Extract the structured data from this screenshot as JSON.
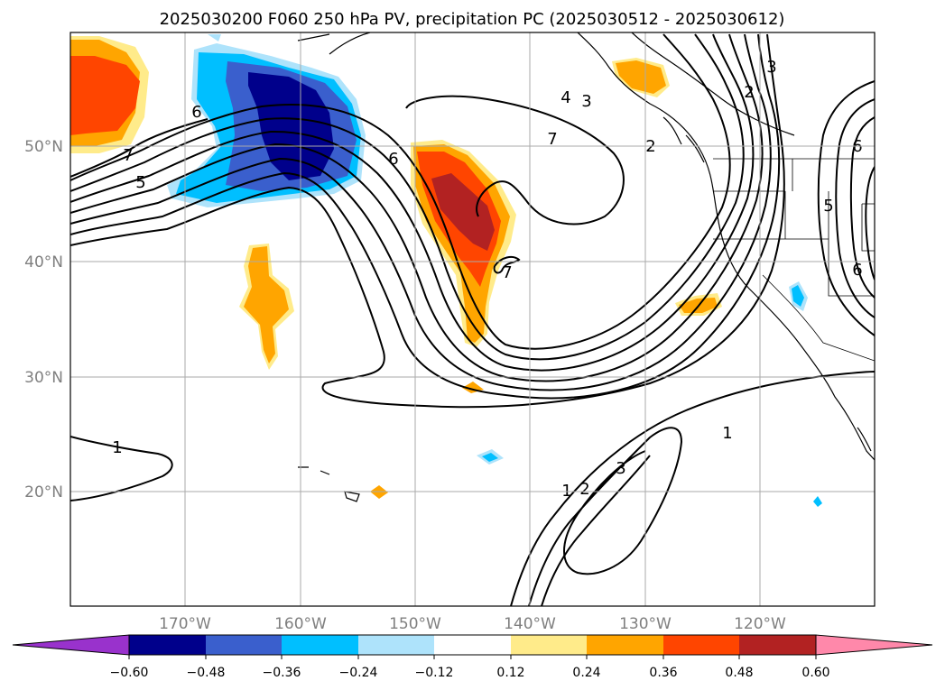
{
  "title": "2025030200 F060 250 hPa PV, precipitation PC (2025030512 - 2025030612)",
  "lat_labels": [
    "50°N",
    "40°N",
    "30°N",
    "20°N"
  ],
  "lon_labels": [
    "170°W",
    "160°W",
    "150°W",
    "140°W",
    "130°W",
    "120°W"
  ],
  "colorbar": {
    "ticks": [
      "−0.60",
      "−0.48",
      "−0.36",
      "−0.24",
      "−0.12",
      "0.12",
      "0.24",
      "0.36",
      "0.48",
      "0.60"
    ],
    "colors": [
      "#9932cc",
      "#00008b",
      "#3a5fcd",
      "#00bfff",
      "#aee3fb",
      "#ffffff",
      "#ffeb8a",
      "#ffa500",
      "#ff4500",
      "#b22222",
      "#ff88aa"
    ]
  },
  "contour_labels": [
    "7",
    "5",
    "6",
    "6",
    "7",
    "4",
    "3",
    "2",
    "7",
    "1",
    "3",
    "2",
    "1",
    "2",
    "3",
    "1",
    "6",
    "5",
    "6"
  ]
}
